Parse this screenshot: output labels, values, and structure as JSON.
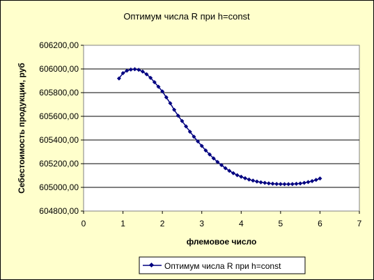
{
  "chart_data": {
    "type": "line",
    "title": "Оптимум числа R при h=const",
    "xlabel": "флемовое число",
    "ylabel": "Себестоимость продукции, руб",
    "xlim": [
      0,
      7
    ],
    "ylim": [
      604800,
      606200
    ],
    "x_ticks": [
      "0",
      "1",
      "2",
      "3",
      "4",
      "5",
      "6",
      "7"
    ],
    "y_ticks": [
      "604800,00",
      "605000,00",
      "605200,00",
      "605400,00",
      "605600,00",
      "605800,00",
      "606000,00",
      "606200,00"
    ],
    "legend_position": "bottom",
    "grid": "horizontal",
    "series": [
      {
        "name": "Оптимум числа R при h=const",
        "color": "#000080",
        "marker": "diamond",
        "x": [
          0.9,
          1.0,
          1.1,
          1.2,
          1.3,
          1.4,
          1.5,
          1.6,
          1.7,
          1.8,
          1.9,
          2.0,
          2.1,
          2.2,
          2.3,
          2.4,
          2.5,
          2.6,
          2.7,
          2.8,
          2.9,
          3.0,
          3.1,
          3.2,
          3.3,
          3.4,
          3.5,
          3.6,
          3.7,
          3.8,
          3.9,
          4.0,
          4.1,
          4.2,
          4.3,
          4.4,
          4.5,
          4.6,
          4.7,
          4.8,
          4.9,
          5.0,
          5.1,
          5.2,
          5.3,
          5.4,
          5.5,
          5.6,
          5.7,
          5.8,
          5.9,
          6.0
        ],
        "y": [
          605920,
          605965,
          605985,
          605995,
          605998,
          605993,
          605978,
          605955,
          605925,
          605888,
          605850,
          605810,
          605760,
          605710,
          605655,
          605605,
          605560,
          605515,
          605470,
          605428,
          605388,
          605350,
          605312,
          605278,
          605245,
          605215,
          605188,
          605162,
          605140,
          605120,
          605103,
          605090,
          605077,
          605066,
          605057,
          605049,
          605043,
          605038,
          605034,
          605031,
          605029,
          605028,
          605027,
          605027,
          605028,
          605030,
          605033,
          605038,
          605045,
          605053,
          605063,
          605075
        ]
      }
    ]
  }
}
